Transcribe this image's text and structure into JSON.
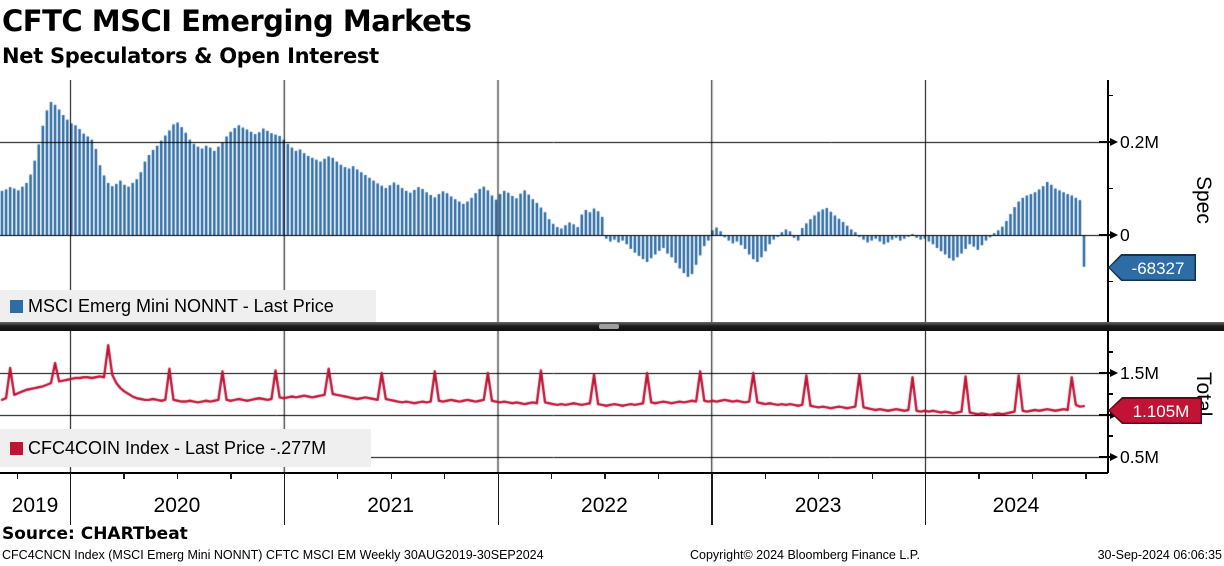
{
  "header": {
    "title": "CFTC MSCI Emerging Markets",
    "subtitle": "Net Speculators & Open Interest"
  },
  "spec_panel": {
    "legend": "MSCI Emerg Mini NONNT - Last Price",
    "axis_title": "Spec",
    "badge_label": "-68327",
    "yticks": [
      {
        "label": "0.2M",
        "value_k": 200
      },
      {
        "label": "0",
        "value_k": 0
      }
    ],
    "minor_yticks_k": [
      300,
      100,
      -100
    ]
  },
  "total_panel": {
    "legend": "CFC4COIN Index - Last Price -.277M",
    "axis_title": "Total",
    "badge_label": "1.105M",
    "yticks": [
      {
        "label": "1.5M",
        "value_M": 1.5
      },
      {
        "label": "1.0M",
        "value_M": 1.0
      },
      {
        "label": "0.5M",
        "value_M": 0.5
      }
    ],
    "minor_yticks_M": [
      1.75,
      1.25,
      0.75
    ]
  },
  "x_axis": {
    "years": [
      "2019",
      "2020",
      "2021",
      "2022",
      "2023",
      "2024"
    ]
  },
  "footer": {
    "source": "Source: CHARTbeat",
    "left": "CFC4CNCN Index (MSCI Emerg Mini NONNT) CFTC MSCI EM  Weekly 30AUG2019-30SEP2024",
    "center": "Copyright© 2024 Bloomberg Finance L.P.",
    "right": "30-Sep-2024 06:06:35"
  },
  "colors": {
    "bar_blue": "#2e6ca6",
    "badge_blue_border": "#16324f",
    "line_red": "#c01335",
    "badge_red_border": "#5c0818",
    "legend_bg": "#efefef",
    "grid": "#000000"
  },
  "chart_data": [
    {
      "type": "bar",
      "name": "MSCI Emerg Mini NONNT - Last Price",
      "panel": "Spec",
      "frequency": "weekly",
      "x_start": "30AUG2019",
      "x_end": "30SEP2024",
      "unit": "thousands of contracts (net speculator positions)",
      "ylim_k": [
        -190,
        330
      ],
      "ytick_labels": [
        "0.2M",
        "0"
      ],
      "last_value": -68327,
      "values_k": [
        95,
        98,
        103,
        100,
        96,
        104,
        112,
        130,
        160,
        195,
        235,
        268,
        286,
        280,
        270,
        258,
        248,
        240,
        236,
        228,
        218,
        212,
        205,
        185,
        150,
        128,
        112,
        105,
        110,
        117,
        108,
        104,
        112,
        120,
        135,
        158,
        172,
        183,
        192,
        203,
        214,
        225,
        238,
        242,
        232,
        220,
        205,
        196,
        190,
        186,
        192,
        188,
        181,
        190,
        200,
        212,
        222,
        230,
        236,
        231,
        227,
        222,
        217,
        221,
        229,
        224,
        219,
        216,
        213,
        205,
        196,
        188,
        181,
        184,
        176,
        170,
        166,
        162,
        158,
        164,
        169,
        166,
        158,
        151,
        146,
        143,
        148,
        141,
        135,
        129,
        123,
        117,
        111,
        106,
        101,
        107,
        113,
        108,
        101,
        95,
        91,
        97,
        103,
        99,
        92,
        86,
        81,
        88,
        94,
        90,
        83,
        77,
        72,
        67,
        72,
        80,
        90,
        99,
        104,
        96,
        85,
        76,
        88,
        95,
        91,
        84,
        79,
        89,
        96,
        87,
        77,
        69,
        59,
        49,
        34,
        24,
        17,
        14,
        21,
        27,
        23,
        17,
        44,
        54,
        49,
        57,
        51,
        39,
        -8,
        -14,
        -10,
        -16,
        -12,
        -20,
        -30,
        -38,
        -45,
        -52,
        -58,
        -50,
        -42,
        -34,
        -28,
        -40,
        -48,
        -60,
        -72,
        -82,
        -90,
        -84,
        -64,
        -44,
        -24,
        -12,
        10,
        16,
        8,
        -5,
        -12,
        -18,
        -14,
        -22,
        -30,
        -42,
        -52,
        -58,
        -48,
        -35,
        -20,
        -10,
        -4,
        6,
        12,
        8,
        -6,
        -12,
        15,
        25,
        34,
        42,
        50,
        55,
        58,
        50,
        42,
        35,
        28,
        20,
        12,
        6,
        -4,
        -10,
        -16,
        -12,
        -8,
        -14,
        -20,
        -16,
        -10,
        -6,
        -12,
        -8,
        -4,
        2,
        -6,
        -10,
        -8,
        -14,
        -20,
        -28,
        -35,
        -42,
        -50,
        -55,
        -48,
        -40,
        -30,
        -20,
        -25,
        -32,
        -22,
        -12,
        -5,
        4,
        10,
        18,
        30,
        45,
        60,
        72,
        80,
        85,
        88,
        92,
        98,
        105,
        114,
        108,
        100,
        96,
        92,
        88,
        85,
        80,
        75,
        -68.327
      ]
    },
    {
      "type": "line",
      "name": "CFC4COIN Index - Last Price -.277M",
      "panel": "Total",
      "frequency": "weekly",
      "x_start": "30AUG2019",
      "x_end": "30SEP2024",
      "unit": "millions of contracts (total open interest)",
      "ylim_M": [
        0.31,
        2.0
      ],
      "ytick_labels": [
        "1.5M",
        "1.0M",
        "0.5M"
      ],
      "last_value_M": 1.105,
      "values_M": [
        1.18,
        1.2,
        1.56,
        1.24,
        1.26,
        1.28,
        1.3,
        1.31,
        1.32,
        1.33,
        1.34,
        1.36,
        1.38,
        1.62,
        1.4,
        1.41,
        1.42,
        1.43,
        1.44,
        1.44,
        1.45,
        1.45,
        1.44,
        1.45,
        1.46,
        1.45,
        1.83,
        1.48,
        1.38,
        1.32,
        1.28,
        1.25,
        1.22,
        1.2,
        1.19,
        1.18,
        1.18,
        1.19,
        1.18,
        1.17,
        1.18,
        1.55,
        1.18,
        1.17,
        1.16,
        1.16,
        1.17,
        1.16,
        1.15,
        1.16,
        1.17,
        1.16,
        1.17,
        1.18,
        1.52,
        1.18,
        1.17,
        1.18,
        1.19,
        1.18,
        1.17,
        1.18,
        1.19,
        1.2,
        1.19,
        1.18,
        1.19,
        1.53,
        1.21,
        1.2,
        1.21,
        1.22,
        1.21,
        1.22,
        1.23,
        1.22,
        1.21,
        1.22,
        1.23,
        1.24,
        1.55,
        1.25,
        1.24,
        1.23,
        1.22,
        1.21,
        1.2,
        1.19,
        1.2,
        1.21,
        1.2,
        1.19,
        1.18,
        1.5,
        1.19,
        1.18,
        1.17,
        1.16,
        1.15,
        1.16,
        1.15,
        1.14,
        1.15,
        1.16,
        1.15,
        1.16,
        1.52,
        1.17,
        1.16,
        1.17,
        1.18,
        1.17,
        1.16,
        1.17,
        1.18,
        1.17,
        1.16,
        1.17,
        1.18,
        1.5,
        1.17,
        1.16,
        1.15,
        1.16,
        1.15,
        1.14,
        1.15,
        1.14,
        1.13,
        1.14,
        1.15,
        1.14,
        1.53,
        1.15,
        1.14,
        1.13,
        1.12,
        1.13,
        1.12,
        1.13,
        1.14,
        1.13,
        1.12,
        1.13,
        1.14,
        1.48,
        1.13,
        1.12,
        1.11,
        1.12,
        1.13,
        1.12,
        1.11,
        1.12,
        1.13,
        1.12,
        1.13,
        1.14,
        1.5,
        1.15,
        1.14,
        1.15,
        1.16,
        1.15,
        1.14,
        1.15,
        1.16,
        1.15,
        1.16,
        1.17,
        1.16,
        1.52,
        1.17,
        1.16,
        1.17,
        1.16,
        1.17,
        1.18,
        1.17,
        1.16,
        1.17,
        1.16,
        1.15,
        1.16,
        1.5,
        1.15,
        1.14,
        1.13,
        1.14,
        1.13,
        1.12,
        1.13,
        1.12,
        1.13,
        1.12,
        1.11,
        1.12,
        1.47,
        1.11,
        1.1,
        1.09,
        1.1,
        1.09,
        1.08,
        1.09,
        1.1,
        1.09,
        1.08,
        1.09,
        1.1,
        1.48,
        1.09,
        1.08,
        1.07,
        1.06,
        1.07,
        1.06,
        1.05,
        1.06,
        1.07,
        1.06,
        1.05,
        1.06,
        1.45,
        1.05,
        1.04,
        1.05,
        1.04,
        1.05,
        1.04,
        1.03,
        1.04,
        1.03,
        1.02,
        1.03,
        1.04,
        1.46,
        1.03,
        1.02,
        1.01,
        1.02,
        1.01,
        1.0,
        1.01,
        1.02,
        1.01,
        1.02,
        1.03,
        1.04,
        1.47,
        1.05,
        1.04,
        1.05,
        1.06,
        1.05,
        1.06,
        1.07,
        1.06,
        1.05,
        1.06,
        1.07,
        1.06,
        1.45,
        1.12,
        1.1,
        1.105
      ]
    }
  ]
}
